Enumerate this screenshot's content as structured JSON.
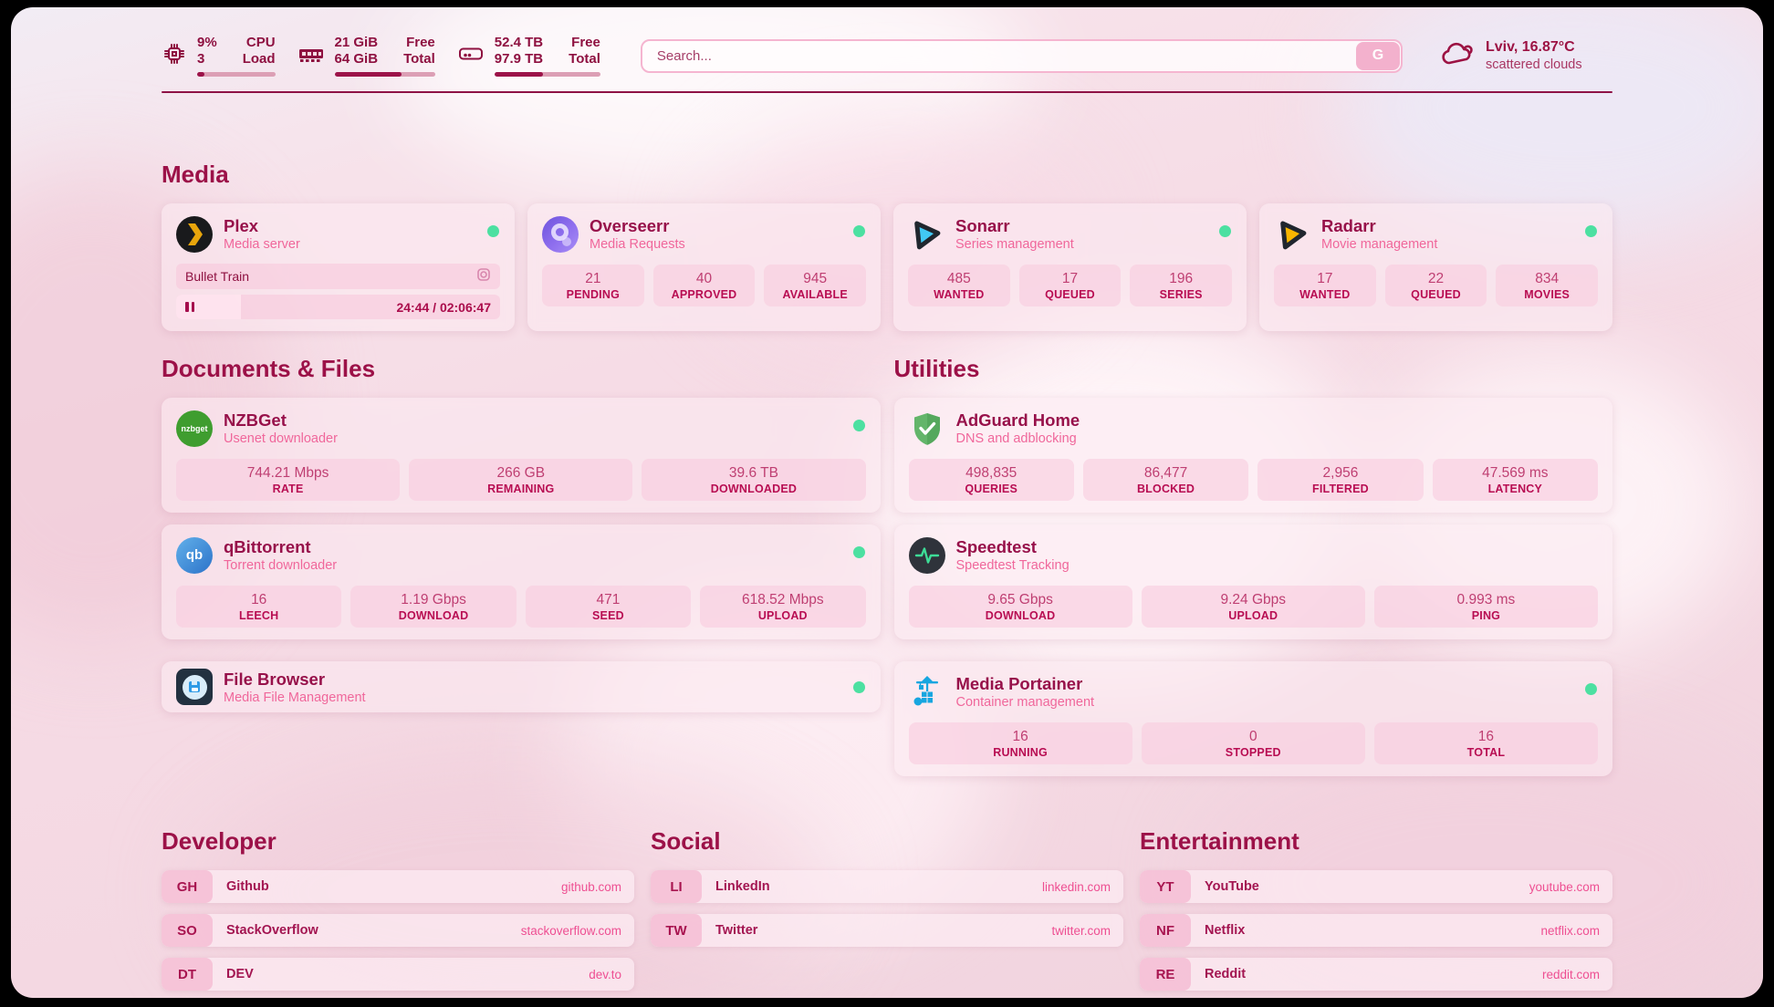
{
  "colors": {
    "accent_dark": "#8e1040",
    "accent": "#9c1148",
    "desc_pink": "#f0679b",
    "url_pink": "#ee4f92",
    "status_green": "#4ce0a1",
    "tile_bg": "#f8cbde",
    "progress_fill": "#9c1349"
  },
  "header": {
    "stats": [
      {
        "icon": "cpu-icon",
        "value_top": "9%",
        "value_bottom": "3",
        "label_top": "CPU",
        "label_bottom": "Load",
        "progress": 9
      },
      {
        "icon": "memory-icon",
        "value_top": "21 GiB",
        "value_bottom": "64 GiB",
        "label_top": "Free",
        "label_bottom": "Total",
        "progress": 67
      },
      {
        "icon": "disk-icon",
        "value_top": "52.4 TB",
        "value_bottom": "97.9 TB",
        "label_top": "Free",
        "label_bottom": "Total",
        "progress": 46
      }
    ],
    "search": {
      "placeholder": "Search...",
      "button_label": "G"
    },
    "weather": {
      "location_temp": "Lviv, 16.87°C",
      "condition": "scattered clouds"
    }
  },
  "media": {
    "title": "Media",
    "plex": {
      "name": "Plex",
      "description": "Media server",
      "now_playing": "Bullet Train",
      "time_display": "24:44 / 02:06:47",
      "progress": 20
    },
    "overseerr": {
      "name": "Overseerr",
      "description": "Media Requests",
      "stats": [
        {
          "value": "21",
          "label": "PENDING"
        },
        {
          "value": "40",
          "label": "APPROVED"
        },
        {
          "value": "945",
          "label": "AVAILABLE"
        }
      ]
    },
    "sonarr": {
      "name": "Sonarr",
      "description": "Series management",
      "stats": [
        {
          "value": "485",
          "label": "WANTED"
        },
        {
          "value": "17",
          "label": "QUEUED"
        },
        {
          "value": "196",
          "label": "SERIES"
        }
      ]
    },
    "radarr": {
      "name": "Radarr",
      "description": "Movie management",
      "stats": [
        {
          "value": "17",
          "label": "WANTED"
        },
        {
          "value": "22",
          "label": "QUEUED"
        },
        {
          "value": "834",
          "label": "MOVIES"
        }
      ]
    }
  },
  "documents": {
    "title": "Documents & Files",
    "nzbget": {
      "name": "NZBGet",
      "description": "Usenet downloader",
      "icon_label": "nzbget",
      "stats": [
        {
          "value": "744.21 Mbps",
          "label": "RATE"
        },
        {
          "value": "266 GB",
          "label": "REMAINING"
        },
        {
          "value": "39.6 TB",
          "label": "DOWNLOADED"
        }
      ]
    },
    "qbittorrent": {
      "name": "qBittorrent",
      "description": "Torrent downloader",
      "icon_label": "qb",
      "stats": [
        {
          "value": "16",
          "label": "LEECH"
        },
        {
          "value": "1.19 Gbps",
          "label": "DOWNLOAD"
        },
        {
          "value": "471",
          "label": "SEED"
        },
        {
          "value": "618.52 Mbps",
          "label": "UPLOAD"
        }
      ]
    },
    "filebrowser": {
      "name": "File Browser",
      "description": "Media File Management"
    }
  },
  "utilities": {
    "title": "Utilities",
    "adguard": {
      "name": "AdGuard Home",
      "description": "DNS and adblocking",
      "stats": [
        {
          "value": "498,835",
          "label": "QUERIES"
        },
        {
          "value": "86,477",
          "label": "BLOCKED"
        },
        {
          "value": "2,956",
          "label": "FILTERED"
        },
        {
          "value": "47.569 ms",
          "label": "LATENCY"
        }
      ]
    },
    "speedtest": {
      "name": "Speedtest",
      "description": "Speedtest Tracking",
      "stats": [
        {
          "value": "9.65 Gbps",
          "label": "DOWNLOAD"
        },
        {
          "value": "9.24 Gbps",
          "label": "UPLOAD"
        },
        {
          "value": "0.993 ms",
          "label": "PING"
        }
      ]
    },
    "portainer": {
      "name": "Media Portainer",
      "description": "Container management",
      "stats": [
        {
          "value": "16",
          "label": "RUNNING"
        },
        {
          "value": "0",
          "label": "STOPPED"
        },
        {
          "value": "16",
          "label": "TOTAL"
        }
      ]
    }
  },
  "links": {
    "developer": {
      "title": "Developer",
      "items": [
        {
          "abbr": "GH",
          "name": "Github",
          "url": "github.com"
        },
        {
          "abbr": "SO",
          "name": "StackOverflow",
          "url": "stackoverflow.com"
        },
        {
          "abbr": "DT",
          "name": "DEV",
          "url": "dev.to"
        }
      ]
    },
    "social": {
      "title": "Social",
      "items": [
        {
          "abbr": "LI",
          "name": "LinkedIn",
          "url": "linkedin.com"
        },
        {
          "abbr": "TW",
          "name": "Twitter",
          "url": "twitter.com"
        }
      ]
    },
    "entertainment": {
      "title": "Entertainment",
      "items": [
        {
          "abbr": "YT",
          "name": "YouTube",
          "url": "youtube.com"
        },
        {
          "abbr": "NF",
          "name": "Netflix",
          "url": "netflix.com"
        },
        {
          "abbr": "RE",
          "name": "Reddit",
          "url": "reddit.com"
        }
      ]
    }
  }
}
